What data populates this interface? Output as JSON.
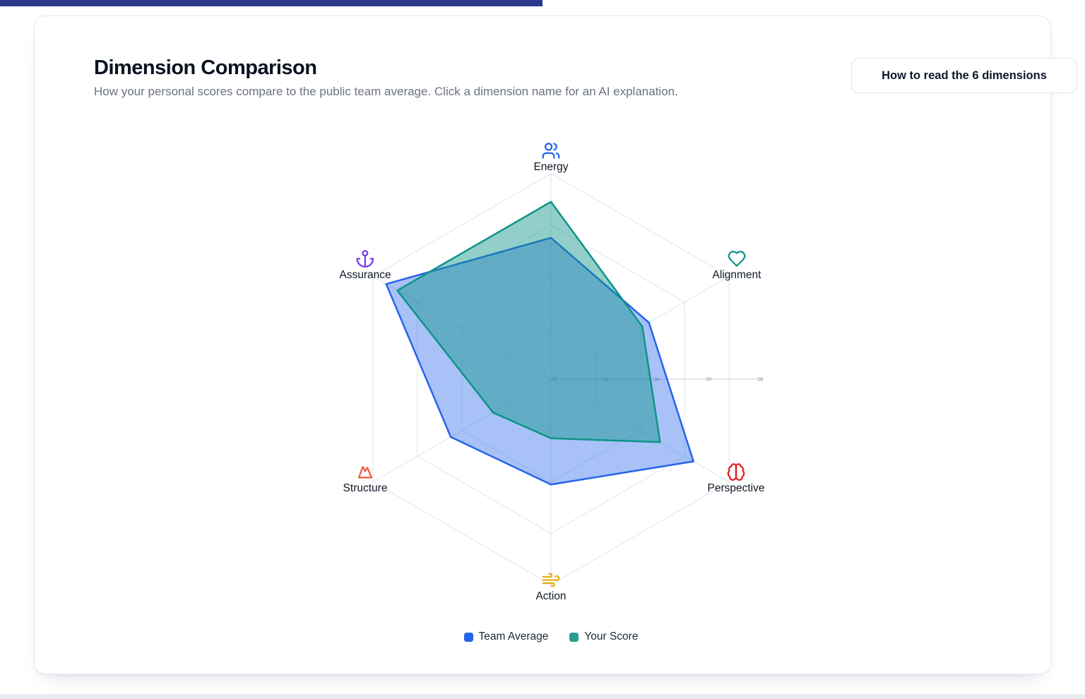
{
  "page": {
    "top_strip_color": "#2b3a8c",
    "bottom_strip_color": "#e7ebf4"
  },
  "card": {
    "title": "Dimension Comparison",
    "subtitle": "How your personal scores compare to the public team average. Click a dimension name for an AI explanation.",
    "button_label": "How to read the 6 dimensions"
  },
  "chart_data": {
    "type": "radar",
    "title": "Dimension Comparison",
    "grid": true,
    "grid_color": "#dde3f0",
    "radial_axis": {
      "ticks": [
        0,
        2,
        4,
        6,
        8
      ],
      "max": 8,
      "grid_levels": [
        2,
        4,
        6,
        8
      ],
      "tick_color": "#a6adba",
      "line_color": "#c6ccd8"
    },
    "axes": [
      {
        "label": "Energy",
        "icon": "users-icon",
        "color": "#2563eb",
        "angle_deg": 90
      },
      {
        "label": "Alignment",
        "icon": "heart-icon",
        "color": "#0d9488",
        "angle_deg": 30
      },
      {
        "label": "Perspective",
        "icon": "brain-icon",
        "color": "#dc2626",
        "angle_deg": -30
      },
      {
        "label": "Action",
        "icon": "wind-icon",
        "color": "#e6b012",
        "angle_deg": -90
      },
      {
        "label": "Structure",
        "icon": "mountain-icon",
        "color": "#f15b3f",
        "angle_deg": 210
      },
      {
        "label": "Assurance",
        "icon": "anchor-icon",
        "color": "#7c3aed",
        "angle_deg": 150
      }
    ],
    "series": [
      {
        "name": "Team Average",
        "color": "#2563eb",
        "fill_opacity": 0.4,
        "values": [
          5.5,
          4.4,
          6.4,
          4.1,
          4.5,
          7.4
        ]
      },
      {
        "name": "Your Score",
        "color": "#0d9488",
        "fill_opacity": 0.45,
        "values": [
          6.9,
          4.1,
          4.9,
          2.3,
          2.6,
          6.9
        ]
      }
    ],
    "legend": [
      {
        "label": "Team Average",
        "color": "#2563eb"
      },
      {
        "label": "Your Score",
        "color": "#2a9d8f"
      }
    ],
    "legend_position": "bottom"
  }
}
